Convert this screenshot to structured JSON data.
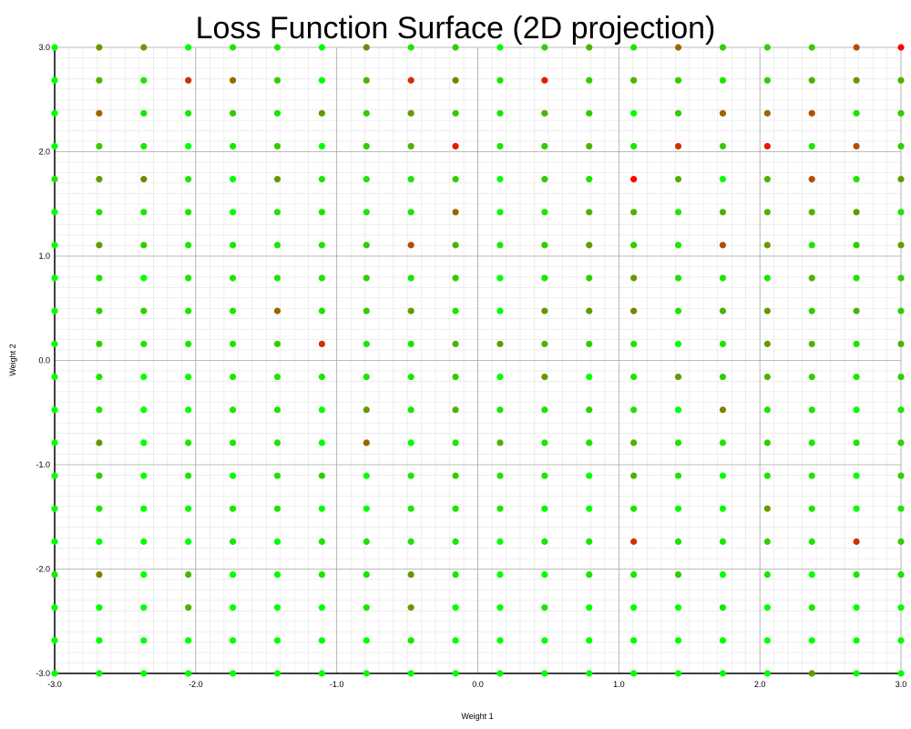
{
  "chart_data": {
    "type": "scatter",
    "title": "Loss Function Surface (2D projection)",
    "xlabel": "Weight 1",
    "ylabel": "Weight 2",
    "xlim": [
      -3.0,
      3.0
    ],
    "ylim": [
      -3.0,
      3.0
    ],
    "x_ticks": [
      "-3.0",
      "-2.0",
      "-1.0",
      "0.0",
      "1.0",
      "2.0",
      "3.0"
    ],
    "y_ticks": [
      "-3.0",
      "-2.0",
      "-1.0",
      "0.0",
      "1.0",
      "2.0",
      "3.0"
    ],
    "grid": true,
    "minor_grid": true,
    "grid_n": 20,
    "color_scale": {
      "low": "#00ff00",
      "high": "#ff0000"
    },
    "loss_rows_top_to_bottom": [
      [
        0.0,
        0.4,
        0.4,
        0.0,
        0.1,
        0.1,
        0.0,
        0.5,
        0.1,
        0.2,
        0.0,
        0.2,
        0.3,
        0.1,
        0.6,
        0.2,
        0.2,
        0.2,
        0.7,
        1.0
      ],
      [
        0.0,
        0.3,
        0.1,
        0.8,
        0.6,
        0.2,
        0.0,
        0.3,
        0.8,
        0.5,
        0.1,
        0.9,
        0.2,
        0.3,
        0.2,
        0.1,
        0.2,
        0.3,
        0.4,
        0.3
      ],
      [
        0.0,
        0.6,
        0.1,
        0.1,
        0.2,
        0.1,
        0.4,
        0.2,
        0.4,
        0.2,
        0.1,
        0.3,
        0.2,
        0.0,
        0.2,
        0.6,
        0.6,
        0.7,
        0.1,
        0.2
      ],
      [
        0.0,
        0.2,
        0.1,
        0.0,
        0.1,
        0.2,
        0.0,
        0.2,
        0.3,
        0.9,
        0.1,
        0.2,
        0.3,
        0.1,
        0.8,
        0.2,
        0.9,
        0.1,
        0.7,
        0.2
      ],
      [
        0.1,
        0.4,
        0.5,
        0.1,
        0.0,
        0.4,
        0.1,
        0.1,
        0.1,
        0.2,
        0.0,
        0.2,
        0.1,
        1.0,
        0.3,
        0.0,
        0.3,
        0.7,
        0.1,
        0.4
      ],
      [
        0.0,
        0.1,
        0.1,
        0.1,
        0.0,
        0.1,
        0.1,
        0.1,
        0.1,
        0.6,
        0.0,
        0.1,
        0.3,
        0.3,
        0.1,
        0.3,
        0.3,
        0.3,
        0.4,
        0.1
      ],
      [
        0.0,
        0.4,
        0.2,
        0.1,
        0.1,
        0.1,
        0.1,
        0.2,
        0.7,
        0.3,
        0.1,
        0.2,
        0.4,
        0.2,
        0.1,
        0.7,
        0.4,
        0.1,
        0.2,
        0.4
      ],
      [
        0.0,
        0.1,
        0.0,
        0.1,
        0.1,
        0.1,
        0.1,
        0.2,
        0.1,
        0.2,
        0.0,
        0.1,
        0.2,
        0.4,
        0.1,
        0.1,
        0.1,
        0.3,
        0.1,
        0.2
      ],
      [
        0.0,
        0.2,
        0.2,
        0.1,
        0.1,
        0.6,
        0.1,
        0.2,
        0.4,
        0.1,
        0.0,
        0.4,
        0.4,
        0.5,
        0.1,
        0.3,
        0.4,
        0.2,
        0.3,
        0.2
      ],
      [
        0.0,
        0.2,
        0.1,
        0.1,
        0.1,
        0.2,
        0.8,
        0.1,
        0.1,
        0.3,
        0.4,
        0.3,
        0.2,
        0.1,
        0.0,
        0.1,
        0.4,
        0.3,
        0.1,
        0.3
      ],
      [
        0.0,
        0.1,
        0.0,
        0.0,
        0.1,
        0.1,
        0.1,
        0.1,
        0.1,
        0.2,
        0.0,
        0.4,
        0.0,
        0.1,
        0.4,
        0.2,
        0.3,
        0.2,
        0.1,
        0.2
      ],
      [
        0.0,
        0.1,
        0.0,
        0.0,
        0.1,
        0.1,
        0.0,
        0.4,
        0.1,
        0.3,
        0.1,
        0.1,
        0.2,
        0.1,
        0.0,
        0.5,
        0.1,
        0.1,
        0.0,
        0.1
      ],
      [
        0.0,
        0.4,
        0.0,
        0.1,
        0.1,
        0.1,
        0.0,
        0.6,
        0.0,
        0.1,
        0.3,
        0.1,
        0.1,
        0.3,
        0.1,
        0.1,
        0.2,
        0.1,
        0.1,
        0.2
      ],
      [
        0.0,
        0.2,
        0.0,
        0.1,
        0.0,
        0.1,
        0.2,
        0.0,
        0.1,
        0.2,
        0.1,
        0.1,
        0.0,
        0.3,
        0.1,
        0.0,
        0.1,
        0.1,
        0.0,
        0.2
      ],
      [
        0.0,
        0.1,
        0.0,
        0.0,
        0.1,
        0.1,
        0.0,
        0.0,
        0.1,
        0.1,
        0.1,
        0.0,
        0.0,
        0.1,
        0.0,
        0.0,
        0.4,
        0.1,
        0.0,
        0.1
      ],
      [
        0.0,
        0.0,
        0.0,
        0.0,
        0.1,
        0.0,
        0.1,
        0.1,
        0.1,
        0.1,
        0.0,
        0.1,
        0.1,
        0.8,
        0.1,
        0.1,
        0.2,
        0.1,
        0.8,
        0.2
      ],
      [
        0.1,
        0.5,
        0.0,
        0.3,
        0.0,
        0.0,
        0.1,
        0.1,
        0.4,
        0.1,
        0.0,
        0.0,
        0.1,
        0.1,
        0.2,
        0.0,
        0.1,
        0.0,
        0.1,
        0.1
      ],
      [
        0.0,
        0.0,
        0.0,
        0.3,
        0.0,
        0.0,
        0.0,
        0.1,
        0.4,
        0.0,
        0.0,
        0.1,
        0.0,
        0.0,
        0.0,
        0.1,
        0.0,
        0.1,
        0.0,
        0.0
      ],
      [
        0.0,
        0.0,
        0.0,
        0.0,
        0.0,
        0.0,
        0.0,
        0.0,
        0.1,
        0.0,
        0.0,
        0.0,
        0.0,
        0.0,
        0.0,
        0.0,
        0.0,
        0.0,
        0.0,
        0.0
      ],
      [
        0.0,
        0.0,
        0.0,
        0.0,
        0.0,
        0.0,
        0.0,
        0.0,
        0.0,
        0.0,
        0.0,
        0.0,
        0.0,
        0.0,
        0.0,
        0.0,
        0.0,
        0.4,
        0.0,
        0.0
      ]
    ]
  }
}
